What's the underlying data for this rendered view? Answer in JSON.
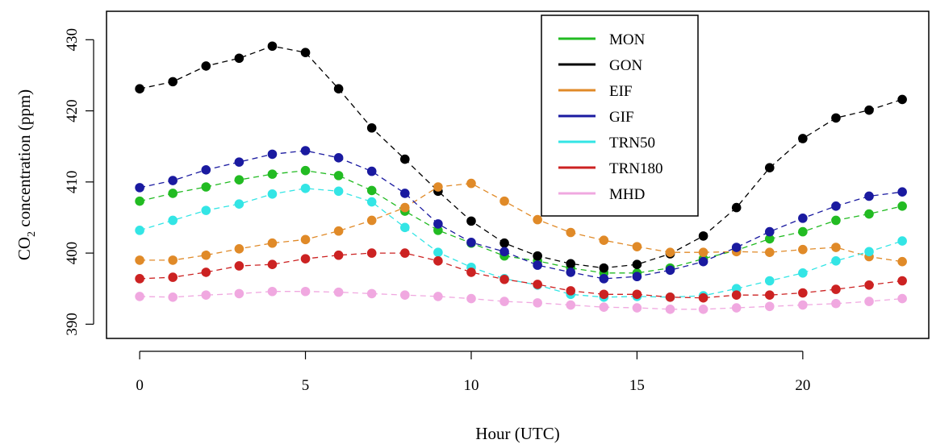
{
  "chart_data": {
    "type": "line",
    "title": "",
    "xlabel": "Hour (UTC)",
    "ylabel_main": "CO",
    "ylabel_sub": "2",
    "ylabel_rest": " concentration (ppm)",
    "xlim": [
      -1,
      23.8
    ],
    "ylim": [
      388,
      434
    ],
    "x_ticks": [
      0,
      5,
      10,
      15,
      20
    ],
    "y_ticks": [
      390,
      400,
      410,
      420,
      430
    ],
    "grid": false,
    "legend_position": "top-center",
    "x": [
      0,
      1,
      2,
      3,
      4,
      5,
      6,
      7,
      8,
      9,
      10,
      11,
      12,
      13,
      14,
      15,
      16,
      17,
      18,
      19,
      20,
      21,
      22,
      23
    ],
    "series": [
      {
        "name": "MON",
        "color": "#22bb22",
        "values": [
          407.3,
          408.4,
          409.3,
          410.3,
          411.1,
          411.6,
          410.9,
          408.8,
          405.9,
          403.2,
          401.4,
          399.6,
          398.9,
          397.9,
          397.2,
          397.2,
          397.9,
          399.2,
          400.4,
          402.0,
          403.0,
          404.6,
          405.5,
          406.6
        ]
      },
      {
        "name": "GON",
        "color": "#000000",
        "values": [
          423.1,
          424.1,
          426.3,
          427.4,
          429.1,
          428.2,
          423.1,
          417.6,
          413.2,
          408.7,
          404.5,
          401.4,
          399.6,
          398.5,
          397.9,
          398.4,
          399.9,
          402.4,
          406.4,
          412.0,
          416.1,
          419.0,
          420.1,
          421.6
        ]
      },
      {
        "name": "EIF",
        "color": "#e08a28",
        "values": [
          399.0,
          399.0,
          399.7,
          400.6,
          401.4,
          401.9,
          403.1,
          404.6,
          406.4,
          409.3,
          409.8,
          407.3,
          404.7,
          402.9,
          401.8,
          400.9,
          400.1,
          400.1,
          400.2,
          400.1,
          400.5,
          400.8,
          399.5,
          398.8
        ]
      },
      {
        "name": "GIF",
        "color": "#1a1aa0",
        "values": [
          409.2,
          410.2,
          411.7,
          412.8,
          413.9,
          414.4,
          413.4,
          411.5,
          408.4,
          404.1,
          401.5,
          400.2,
          398.3,
          397.3,
          396.4,
          396.7,
          397.6,
          398.8,
          400.8,
          403.0,
          404.9,
          406.6,
          408.0,
          408.6
        ]
      },
      {
        "name": "TRN50",
        "color": "#33e5e5",
        "values": [
          403.2,
          404.6,
          406.0,
          406.9,
          408.3,
          409.1,
          408.7,
          407.2,
          403.6,
          400.1,
          398.0,
          396.4,
          395.5,
          394.2,
          393.8,
          393.9,
          393.8,
          394.0,
          395.0,
          396.1,
          397.2,
          398.9,
          400.2,
          401.7
        ]
      },
      {
        "name": "TRN180",
        "color": "#cc2222",
        "values": [
          396.4,
          396.6,
          397.3,
          398.2,
          398.4,
          399.2,
          399.7,
          400.0,
          400.0,
          398.9,
          397.3,
          396.3,
          395.6,
          394.7,
          394.2,
          394.2,
          393.8,
          393.7,
          394.1,
          394.1,
          394.4,
          394.9,
          395.5,
          396.1
        ]
      },
      {
        "name": "MHD",
        "color": "#f0a8e0",
        "values": [
          393.9,
          393.8,
          394.1,
          394.3,
          394.6,
          394.6,
          394.5,
          394.3,
          394.1,
          393.9,
          393.6,
          393.2,
          393.0,
          392.7,
          392.4,
          392.3,
          392.1,
          392.1,
          392.3,
          392.5,
          392.7,
          392.9,
          393.2,
          393.6
        ]
      }
    ]
  }
}
